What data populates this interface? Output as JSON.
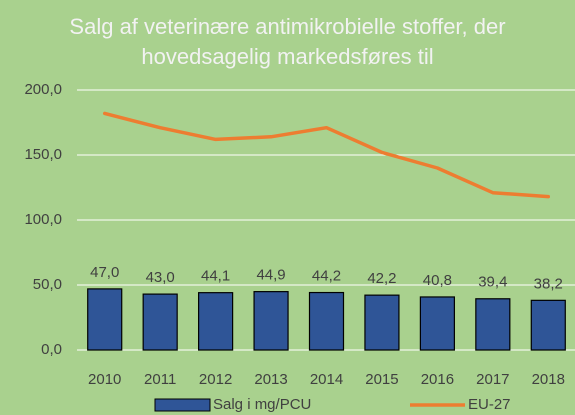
{
  "chart_data": {
    "type": "bar",
    "title": "Salg af veterinære antimikrobielle stoffer, der hovedsagelig markedsføres til",
    "categories": [
      "2010",
      "2011",
      "2012",
      "2013",
      "2014",
      "2015",
      "2016",
      "2017",
      "2018"
    ],
    "series": [
      {
        "name": "Salg i mg/PCU",
        "type": "bar",
        "color": "#2f5597",
        "values": [
          47.0,
          43.0,
          44.1,
          44.9,
          44.2,
          42.2,
          40.8,
          39.4,
          38.2
        ],
        "value_labels": [
          "47,0",
          "43,0",
          "44,1",
          "44,9",
          "44,2",
          "42,2",
          "40,8",
          "39,4",
          "38,2"
        ]
      },
      {
        "name": "EU-27",
        "type": "line",
        "color": "#ed7d31",
        "values": [
          182,
          171,
          162,
          164,
          171,
          152,
          140,
          121,
          118
        ]
      }
    ],
    "ylim": [
      0,
      200
    ],
    "yticks": [
      {
        "value": 0,
        "label": "0,0"
      },
      {
        "value": 50,
        "label": "50,0"
      },
      {
        "value": 100,
        "label": "100,0"
      },
      {
        "value": 150,
        "label": "150,0"
      },
      {
        "value": 200,
        "label": "200,0"
      }
    ],
    "grid": true,
    "legend": "bottom",
    "background": "#a9d18e"
  }
}
